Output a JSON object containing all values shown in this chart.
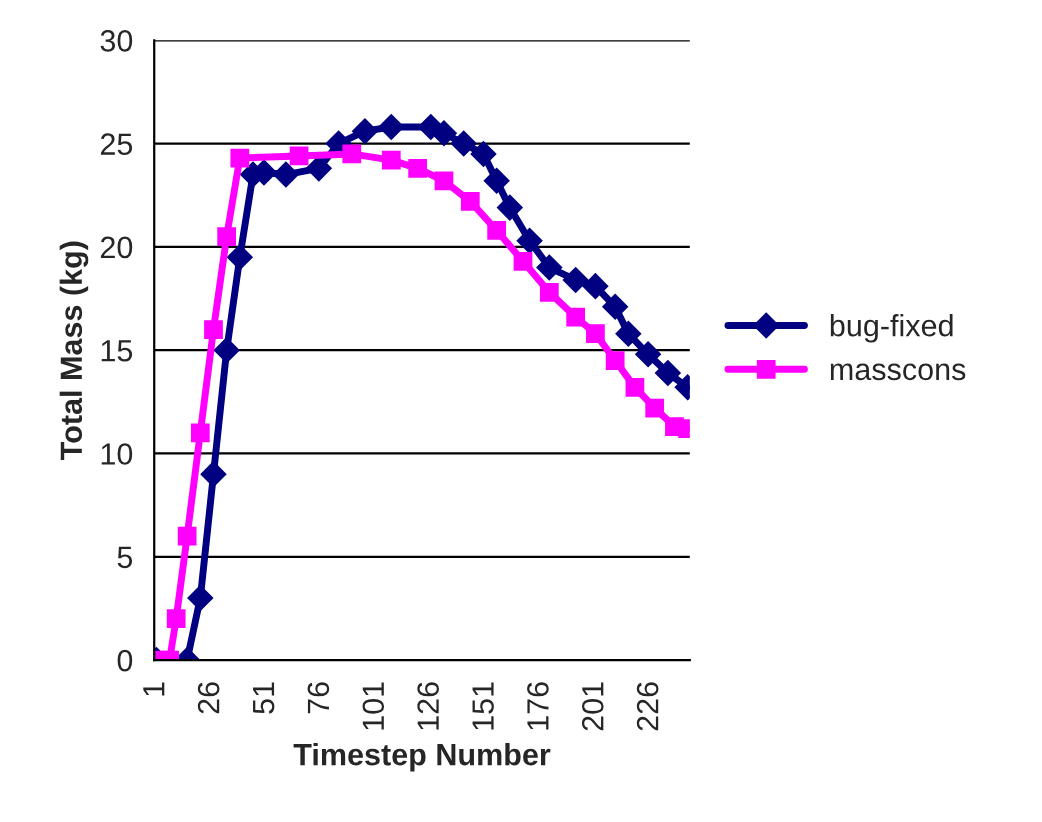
{
  "chart_data": {
    "type": "line",
    "xlabel": "Timestep Number",
    "ylabel": "Total Mass (kg)",
    "xlim": [
      0,
      244
    ],
    "xticks": [
      1,
      26,
      51,
      76,
      101,
      126,
      151,
      176,
      201,
      226
    ],
    "ylim": [
      0,
      30
    ],
    "yticks": [
      0,
      5,
      10,
      15,
      20,
      25,
      30
    ],
    "grid": "y",
    "legend": "right",
    "series": [
      {
        "name": "bug-fixed",
        "color": "#000080",
        "marker": "diamond",
        "x": [
          1,
          15,
          21,
          27,
          33,
          39,
          45,
          50,
          60,
          75,
          84,
          96,
          108,
          126,
          132,
          141,
          150,
          156,
          162,
          171,
          180,
          192,
          201,
          210,
          216,
          225,
          234,
          243
        ],
        "values": [
          0,
          0,
          3,
          9,
          15,
          19.5,
          23.5,
          23.6,
          23.5,
          23.8,
          25,
          25.6,
          25.8,
          25.8,
          25.5,
          25,
          24.5,
          23.2,
          21.9,
          20.3,
          19,
          18.4,
          18.1,
          17.1,
          15.8,
          14.8,
          13.9,
          13.2
        ]
      },
      {
        "name": "masscons",
        "color": "#ff00ff",
        "marker": "square",
        "x": [
          1,
          7,
          10,
          15,
          21,
          27,
          33,
          39,
          66,
          90,
          108,
          120,
          132,
          144,
          156,
          168,
          180,
          192,
          201,
          210,
          219,
          228,
          237,
          243
        ],
        "values": [
          0,
          0,
          2,
          6,
          11,
          16,
          20.5,
          24.3,
          24.4,
          24.5,
          24.2,
          23.8,
          23.2,
          22.2,
          20.8,
          19.3,
          17.8,
          16.6,
          15.8,
          14.5,
          13.2,
          12.2,
          11.3,
          11.2
        ]
      }
    ]
  }
}
